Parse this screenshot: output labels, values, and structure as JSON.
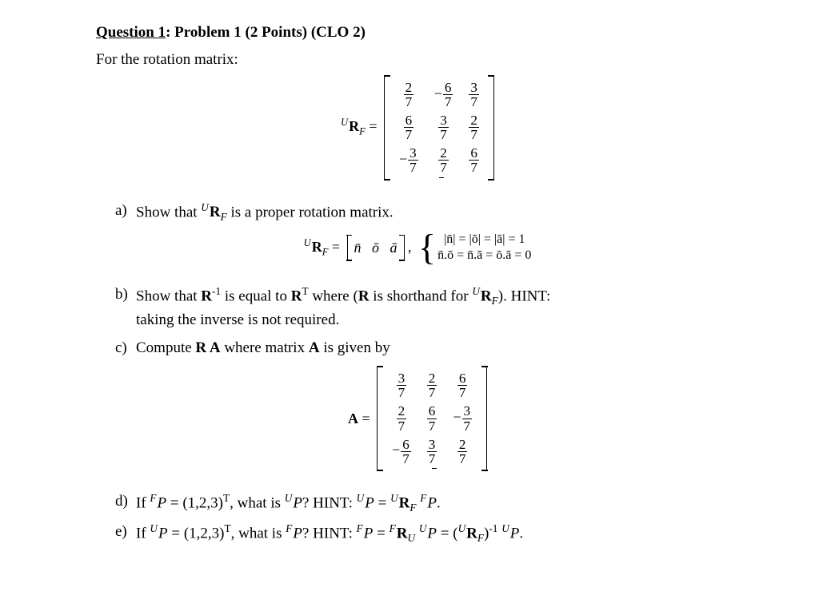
{
  "header": {
    "question_label": "Question 1",
    "title_rest": ": Problem 1 (2 Points) (CLO 2)"
  },
  "intro": "For the rotation matrix:",
  "R_label": {
    "presup": "U",
    "R": "R",
    "sub": "F",
    "eq": " ="
  },
  "matrix_R": {
    "rows": [
      [
        {
          "neg": false,
          "n": "2",
          "d": "7"
        },
        {
          "neg": true,
          "n": "6",
          "d": "7"
        },
        {
          "neg": false,
          "n": "3",
          "d": "7"
        }
      ],
      [
        {
          "neg": false,
          "n": "6",
          "d": "7"
        },
        {
          "neg": false,
          "n": "3",
          "d": "7"
        },
        {
          "neg": false,
          "n": "2",
          "d": "7"
        }
      ],
      [
        {
          "neg": true,
          "n": "3",
          "d": "7"
        },
        {
          "neg": false,
          "n": "2",
          "d": "7"
        },
        {
          "neg": false,
          "n": "6",
          "d": "7"
        }
      ]
    ]
  },
  "part_a": {
    "label": "a)",
    "text_pre": "Show that",
    "text_post": " is a proper rotation matrix."
  },
  "vec_def": {
    "cols": [
      "n̄",
      "ō",
      "ā"
    ],
    "line1": "|n̄| = |ō| = |ā| = 1",
    "line2": "n̄.ō = n̄.ā = ō.ā = 0"
  },
  "part_b": {
    "label": "b)",
    "text1": "Show that ",
    "Rinv": "R",
    "exp_inv": "-1",
    "text2": " is equal to ",
    "RT": "R",
    "exp_T": "T",
    "text3": " where (",
    "Rbold": "R",
    "text4": " is shorthand for ",
    "text5": ").  HINT:",
    "line2": "taking the inverse is not required."
  },
  "part_c": {
    "label": "c)",
    "text1": "Compute ",
    "RA": "R A",
    "text2": " where matrix ",
    "A": "A",
    "text3": " is given by"
  },
  "A_label": {
    "A": "A",
    "eq": " ="
  },
  "matrix_A": {
    "rows": [
      [
        {
          "neg": false,
          "n": "3",
          "d": "7"
        },
        {
          "neg": false,
          "n": "2",
          "d": "7"
        },
        {
          "neg": false,
          "n": "6",
          "d": "7"
        }
      ],
      [
        {
          "neg": false,
          "n": "2",
          "d": "7"
        },
        {
          "neg": false,
          "n": "6",
          "d": "7"
        },
        {
          "neg": true,
          "n": "3",
          "d": "7"
        }
      ],
      [
        {
          "neg": true,
          "n": "6",
          "d": "7"
        },
        {
          "neg": false,
          "n": "3",
          "d": "7"
        },
        {
          "neg": false,
          "n": "2",
          "d": "7"
        }
      ]
    ]
  },
  "part_d": {
    "label": "d)",
    "seg1": "If ",
    "FP": "P",
    "vec": " = (1,2,3)",
    "T": "T",
    "seg2": ", what is ",
    "UP": "P",
    "seg3": "? HINT: ",
    "hint": "P = ",
    "rest": "."
  },
  "part_e": {
    "label": "e)",
    "seg1": "If ",
    "vec": " = (1,2,3)",
    "T": "T",
    "seg2": ", what is ",
    "seg3": "? HINT: ",
    "rest": "."
  },
  "colors": {
    "text": "#000000",
    "background": "#ffffff"
  },
  "typography": {
    "body_font": "Times New Roman",
    "body_size_pt": 14
  }
}
